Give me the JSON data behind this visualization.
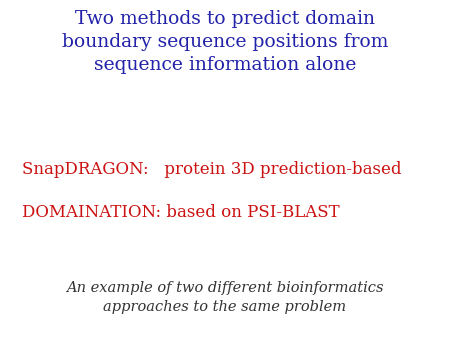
{
  "bg_color": "#ffffff",
  "title_line1": "Two methods to predict domain",
  "title_line2": "boundary sequence positions from",
  "title_line3": "sequence information alone",
  "title_color": "#2222aa",
  "title_fontsize": 13.5,
  "snap_label": "SnapDRAGON:   protein 3D prediction-based",
  "dom_label": "DOMAINATION: based on PSI-BLAST",
  "bullet_color": "#cc1111",
  "bullet_fontsize": 12,
  "footer_line1": "An example of two different bioinformatics",
  "footer_line2": "approaches to the same problem",
  "footer_color": "#333333",
  "footer_fontsize": 10.5
}
